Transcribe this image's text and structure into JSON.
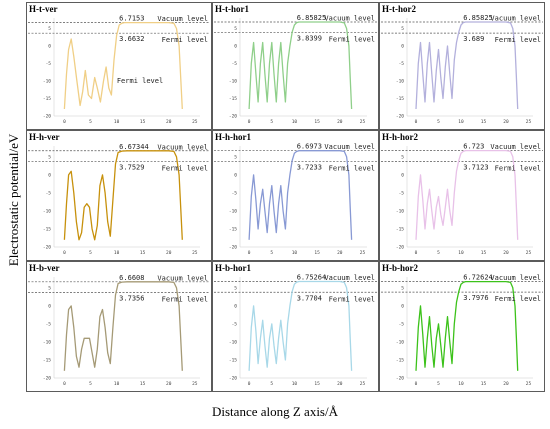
{
  "figure": {
    "ylabel": "Electrostatic potential/eV",
    "xlabel": "Distance along Z axis/Å"
  },
  "chart_data": {
    "type": "line",
    "grid_rows": 3,
    "grid_cols": 3,
    "xlim": [
      -2,
      26
    ],
    "ylim": [
      -20,
      8
    ],
    "xticks": [
      "0",
      "5",
      "10",
      "15",
      "20",
      "25"
    ],
    "yticks": [
      "5",
      "0",
      "-5",
      "-10",
      "-15",
      "-20"
    ],
    "labels": {
      "vacuum": "Vacuum level",
      "fermi": "Fermi level"
    },
    "panels": [
      {
        "title": "H-t-ver",
        "vacuum": "6.7153",
        "fermi": "3.6632",
        "vacuum_value": 6.7153,
        "fermi_value": 3.6632,
        "color": "#f0cf86",
        "mid_fermi_label": true,
        "x": [
          0,
          0.4,
          0.8,
          1.3,
          1.8,
          2.4,
          3,
          3.5,
          4,
          4.6,
          5.2,
          5.8,
          6.3,
          6.9,
          7.5,
          8,
          8.5,
          9,
          9.5,
          10,
          10.5,
          11,
          11.5,
          12,
          14,
          16,
          18,
          20,
          21,
          21.5,
          22,
          22.3,
          22.6
        ],
        "y": [
          -18,
          -8,
          -1,
          2,
          -3,
          -10,
          -17,
          -13,
          -7,
          -14,
          -15,
          -9,
          -12,
          -16,
          -10,
          -6,
          -12,
          -14,
          -4,
          3,
          6,
          6.5,
          6.7,
          6.7,
          6.7,
          6.7,
          6.7,
          6.7,
          6.5,
          5,
          0,
          -9,
          -18
        ]
      },
      {
        "title": "H-t-hor1",
        "vacuum": "6.85825",
        "fermi": "3.8399",
        "vacuum_value": 6.85825,
        "fermi_value": 3.8399,
        "color": "#8fcf8a",
        "x": [
          0,
          0.5,
          1,
          1.5,
          2,
          2.5,
          3,
          3.5,
          4,
          4.5,
          5,
          5.5,
          6,
          6.5,
          7,
          7.5,
          8,
          8.5,
          9,
          9.5,
          10,
          10.5,
          11,
          12,
          14,
          16,
          18,
          20,
          21,
          21.5,
          22,
          22.3,
          22.6
        ],
        "y": [
          -18,
          -5,
          1,
          -8,
          -16,
          -5,
          1,
          -8,
          -16,
          -5,
          1,
          -8,
          -16,
          -5,
          1,
          -8,
          -16,
          -5,
          0,
          4,
          6,
          6.7,
          6.85,
          6.85,
          6.85,
          6.85,
          6.85,
          6.85,
          6.6,
          5,
          0,
          -9,
          -18
        ]
      },
      {
        "title": "H-t-hor2",
        "vacuum": "6.85825",
        "fermi": "3.689",
        "vacuum_value": 6.85825,
        "fermi_value": 3.689,
        "color": "#b3b0dc",
        "x": [
          0,
          0.5,
          1,
          1.5,
          2,
          2.5,
          3,
          3.5,
          4,
          4.5,
          5,
          5.5,
          6,
          6.5,
          7,
          7.5,
          8,
          8.5,
          9,
          9.5,
          10,
          10.5,
          11,
          12,
          14,
          16,
          18,
          20,
          21,
          21.5,
          22,
          22.3,
          22.6
        ],
        "y": [
          -18,
          -5,
          1,
          -8,
          -16,
          -5,
          1,
          -8,
          -16,
          -7,
          -1,
          -9,
          -15,
          -6,
          0,
          -8,
          -15,
          -4,
          1,
          4,
          6,
          6.7,
          6.85,
          6.85,
          6.85,
          6.85,
          6.85,
          6.85,
          6.6,
          5,
          0,
          -9,
          -18
        ]
      },
      {
        "title": "H-h-ver",
        "vacuum": "6.67344",
        "fermi": "3.7529",
        "vacuum_value": 6.67344,
        "fermi_value": 3.7529,
        "color": "#c7910c",
        "x": [
          0,
          0.4,
          0.8,
          1.3,
          1.8,
          2.3,
          2.8,
          3.3,
          3.8,
          4.3,
          4.8,
          5.3,
          5.8,
          6.3,
          6.8,
          7.3,
          7.8,
          8.3,
          8.8,
          9.3,
          9.8,
          10.3,
          11,
          12,
          14,
          16,
          18,
          20,
          21,
          21.5,
          22,
          22.3,
          22.6
        ],
        "y": [
          -18,
          -8,
          0,
          1,
          -5,
          -13,
          -18,
          -16,
          -9,
          -8,
          -9,
          -15,
          -18,
          -14,
          -3,
          0,
          -5,
          -13,
          -17,
          -7,
          3,
          6.2,
          6.6,
          6.67,
          6.67,
          6.67,
          6.67,
          6.67,
          6.5,
          5,
          0,
          -9,
          -18
        ]
      },
      {
        "title": "H-h-hor1",
        "vacuum": "6.6973",
        "fermi": "3.7233",
        "vacuum_value": 6.6973,
        "fermi_value": 3.7233,
        "color": "#8899d4",
        "x": [
          0,
          0.5,
          1,
          1.5,
          2,
          2.5,
          3,
          3.5,
          4,
          4.5,
          5,
          5.5,
          6,
          6.5,
          7,
          7.5,
          8,
          8.5,
          9,
          9.5,
          10,
          10.5,
          11,
          12,
          14,
          16,
          18,
          20,
          21,
          21.5,
          22,
          22.3,
          22.6
        ],
        "y": [
          -18,
          -6,
          0,
          -7,
          -15,
          -8,
          -4,
          -10,
          -16,
          -8,
          -3,
          -10,
          -16,
          -8,
          -3,
          -10,
          -15,
          -5,
          0,
          4,
          6,
          6.5,
          6.7,
          6.7,
          6.7,
          6.7,
          6.7,
          6.7,
          6.5,
          5,
          0,
          -9,
          -18
        ]
      },
      {
        "title": "H-h-hor2",
        "vacuum": "6.723",
        "fermi": "3.7123",
        "vacuum_value": 6.723,
        "fermi_value": 3.7123,
        "color": "#e8c1e8",
        "x": [
          0,
          0.5,
          1,
          1.5,
          2,
          2.5,
          3,
          3.5,
          4,
          4.5,
          5,
          5.5,
          6,
          6.5,
          7,
          7.5,
          8,
          8.5,
          9,
          9.5,
          10,
          10.5,
          11,
          12,
          14,
          16,
          18,
          20,
          21,
          21.5,
          22,
          22.3,
          22.6
        ],
        "y": [
          -18,
          -6,
          0,
          -7,
          -15,
          -8,
          -4,
          -10,
          -15,
          -9,
          -6,
          -11,
          -14,
          -9,
          -4,
          -10,
          -14,
          -5,
          1,
          4,
          6,
          6.5,
          6.72,
          6.72,
          6.72,
          6.72,
          6.72,
          6.72,
          6.5,
          5,
          0,
          -9,
          -18
        ]
      },
      {
        "title": "H-b-ver",
        "vacuum": "6.6608",
        "fermi": "3.7356",
        "vacuum_value": 6.6608,
        "fermi_value": 3.7356,
        "color": "#a59a76",
        "x": [
          0,
          0.4,
          0.8,
          1.3,
          1.8,
          2.3,
          2.8,
          3.3,
          3.8,
          4.3,
          4.8,
          5.3,
          5.8,
          6.3,
          6.8,
          7.3,
          7.8,
          8.3,
          8.8,
          9.3,
          9.8,
          10.3,
          11,
          12,
          14,
          16,
          18,
          20,
          21,
          21.5,
          22,
          22.3,
          22.6
        ],
        "y": [
          -18,
          -8,
          -1,
          0,
          -6,
          -14,
          -17,
          -12,
          -9,
          -9,
          -9,
          -13,
          -17,
          -12,
          -3,
          -1,
          -6,
          -13,
          -16,
          -6,
          3,
          6.2,
          6.6,
          6.66,
          6.66,
          6.66,
          6.66,
          6.66,
          6.5,
          5,
          0,
          -9,
          -18
        ]
      },
      {
        "title": "H-b-hor1",
        "vacuum": "6.75264",
        "fermi": "3.7704",
        "vacuum_value": 6.75264,
        "fermi_value": 3.7704,
        "color": "#a8d8e8",
        "x": [
          0,
          0.5,
          1,
          1.5,
          2,
          2.5,
          3,
          3.5,
          4,
          4.5,
          5,
          5.5,
          6,
          6.5,
          7,
          7.5,
          8,
          8.5,
          9,
          9.5,
          10,
          10.5,
          11,
          12,
          14,
          16,
          18,
          20,
          21,
          21.5,
          22,
          22.3,
          22.6
        ],
        "y": [
          -18,
          -6,
          0,
          -7,
          -16,
          -9,
          -4,
          -11,
          -17,
          -9,
          -5,
          -11,
          -16,
          -9,
          -4,
          -10,
          -15,
          -5,
          0,
          4,
          6,
          6.6,
          6.75,
          6.75,
          6.75,
          6.75,
          6.75,
          6.75,
          6.5,
          5,
          0,
          -9,
          -18
        ]
      },
      {
        "title": "H-b-hor2",
        "vacuum": "6.72624",
        "fermi": "3.7976",
        "vacuum_value": 6.72624,
        "fermi_value": 3.7976,
        "color": "#3cc21a",
        "x": [
          0,
          0.5,
          1,
          1.5,
          2,
          2.5,
          3,
          3.5,
          4,
          4.5,
          5,
          5.5,
          6,
          6.5,
          7,
          7.5,
          8,
          8.5,
          9,
          9.5,
          10,
          10.5,
          11,
          12,
          14,
          16,
          18,
          20,
          21,
          21.5,
          22,
          22.3,
          22.6
        ],
        "y": [
          -18,
          -6,
          0,
          -8,
          -17,
          -9,
          -3,
          -11,
          -17,
          -9,
          -5,
          -11,
          -17,
          -9,
          -3,
          -10,
          -16,
          -5,
          1,
          4,
          6,
          6.5,
          6.72,
          6.72,
          6.72,
          6.72,
          6.72,
          6.72,
          6.5,
          5,
          0,
          -9,
          -18
        ]
      }
    ]
  }
}
